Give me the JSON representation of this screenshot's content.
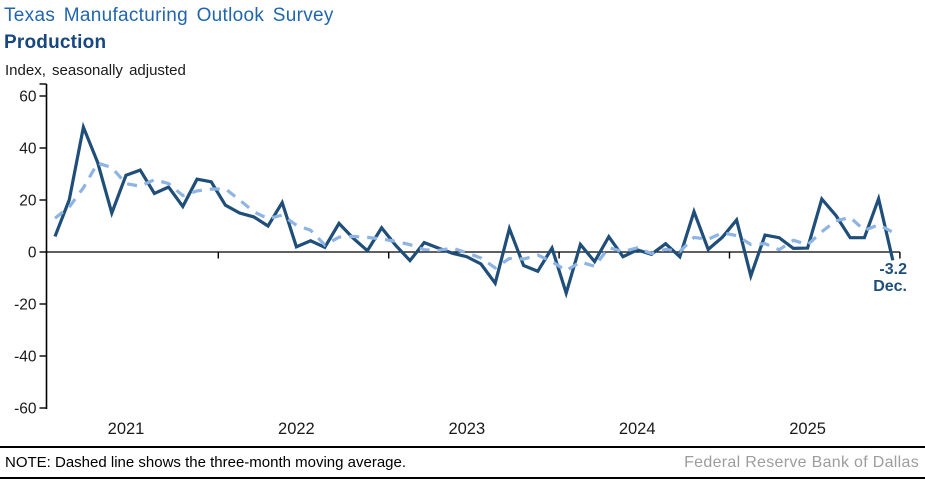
{
  "header": {
    "title": "Texas Manufacturing Outlook Survey",
    "subtitle": "Production",
    "axis_note": "Index, seasonally adjusted"
  },
  "annotation": {
    "value": "-3.2",
    "month": "Dec."
  },
  "footer": {
    "note": "NOTE: Dashed line shows the three-month moving average.",
    "source": "Federal Reserve Bank of Dallas"
  },
  "colors": {
    "title_blue": "#2166ac",
    "subtitle_navy": "#17477e",
    "solid_line": "#1f4e79",
    "dashed_line": "#8db4e2",
    "axis": "#000000",
    "tick_label": "#1a1a1a",
    "source_gray": "#9d9d9d"
  },
  "chart_data": {
    "type": "line",
    "title": "Texas Manufacturing Outlook Survey — Production",
    "ylabel": "Index, seasonally adjusted",
    "frequency": "monthly",
    "start_month": "2021-01",
    "end_month": "2025-12",
    "ylim": [
      -60,
      60
    ],
    "y_ticks": [
      60,
      40,
      20,
      0,
      -20,
      -40,
      -60
    ],
    "x_tick_labels": [
      "2021",
      "2022",
      "2023",
      "2024",
      "2025"
    ],
    "grid": false,
    "legend_position": "none",
    "latest_point": {
      "label": "Dec.",
      "value": -3.2
    },
    "series": [
      {
        "name": "Production index",
        "style": "solid",
        "color": "#1f4e79",
        "values": [
          6,
          20,
          48,
          34.5,
          15,
          29.5,
          31.5,
          22.5,
          25,
          17.5,
          28,
          27,
          18,
          15,
          13.5,
          10,
          19,
          2,
          4.3,
          1.8,
          11,
          5.3,
          0.5,
          9.3,
          2.5,
          -3.3,
          3.6,
          1.5,
          -0.5,
          -1.8,
          -4.6,
          -12,
          9,
          -5.2,
          -7.4,
          1.5,
          -15.8,
          2.9,
          -3.7,
          5.9,
          -1.8,
          0.8,
          -0.9,
          3.2,
          -1.8,
          15.5,
          1,
          5.7,
          12.3,
          -9.2,
          6.5,
          5.5,
          1.4,
          1.5,
          20.4,
          14,
          5.5,
          5.5,
          20.5,
          -3.2
        ]
      },
      {
        "name": "Three-month moving average",
        "style": "dashed",
        "color": "#8db4e2",
        "values": [
          13,
          17.3,
          24.7,
          34.2,
          32.5,
          26.3,
          25.3,
          27.8,
          26.3,
          21.7,
          23.5,
          24.2,
          24.3,
          20,
          15.5,
          12.8,
          14.2,
          10.3,
          8.4,
          2.7,
          5.7,
          6,
          5.6,
          5,
          4.1,
          2.8,
          0.9,
          0.6,
          1.5,
          -0.3,
          -2.3,
          -6.1,
          -2.5,
          -2.7,
          -1.2,
          -3.7,
          -7.2,
          -3.8,
          -5.5,
          1.7,
          0.1,
          1.6,
          -0.6,
          1,
          0.2,
          5.6,
          4.9,
          7.4,
          6.3,
          2.9,
          3.2,
          0.9,
          4.5,
          2.8,
          7.8,
          12,
          13.3,
          8.3,
          10.5,
          7.6
        ]
      }
    ]
  }
}
